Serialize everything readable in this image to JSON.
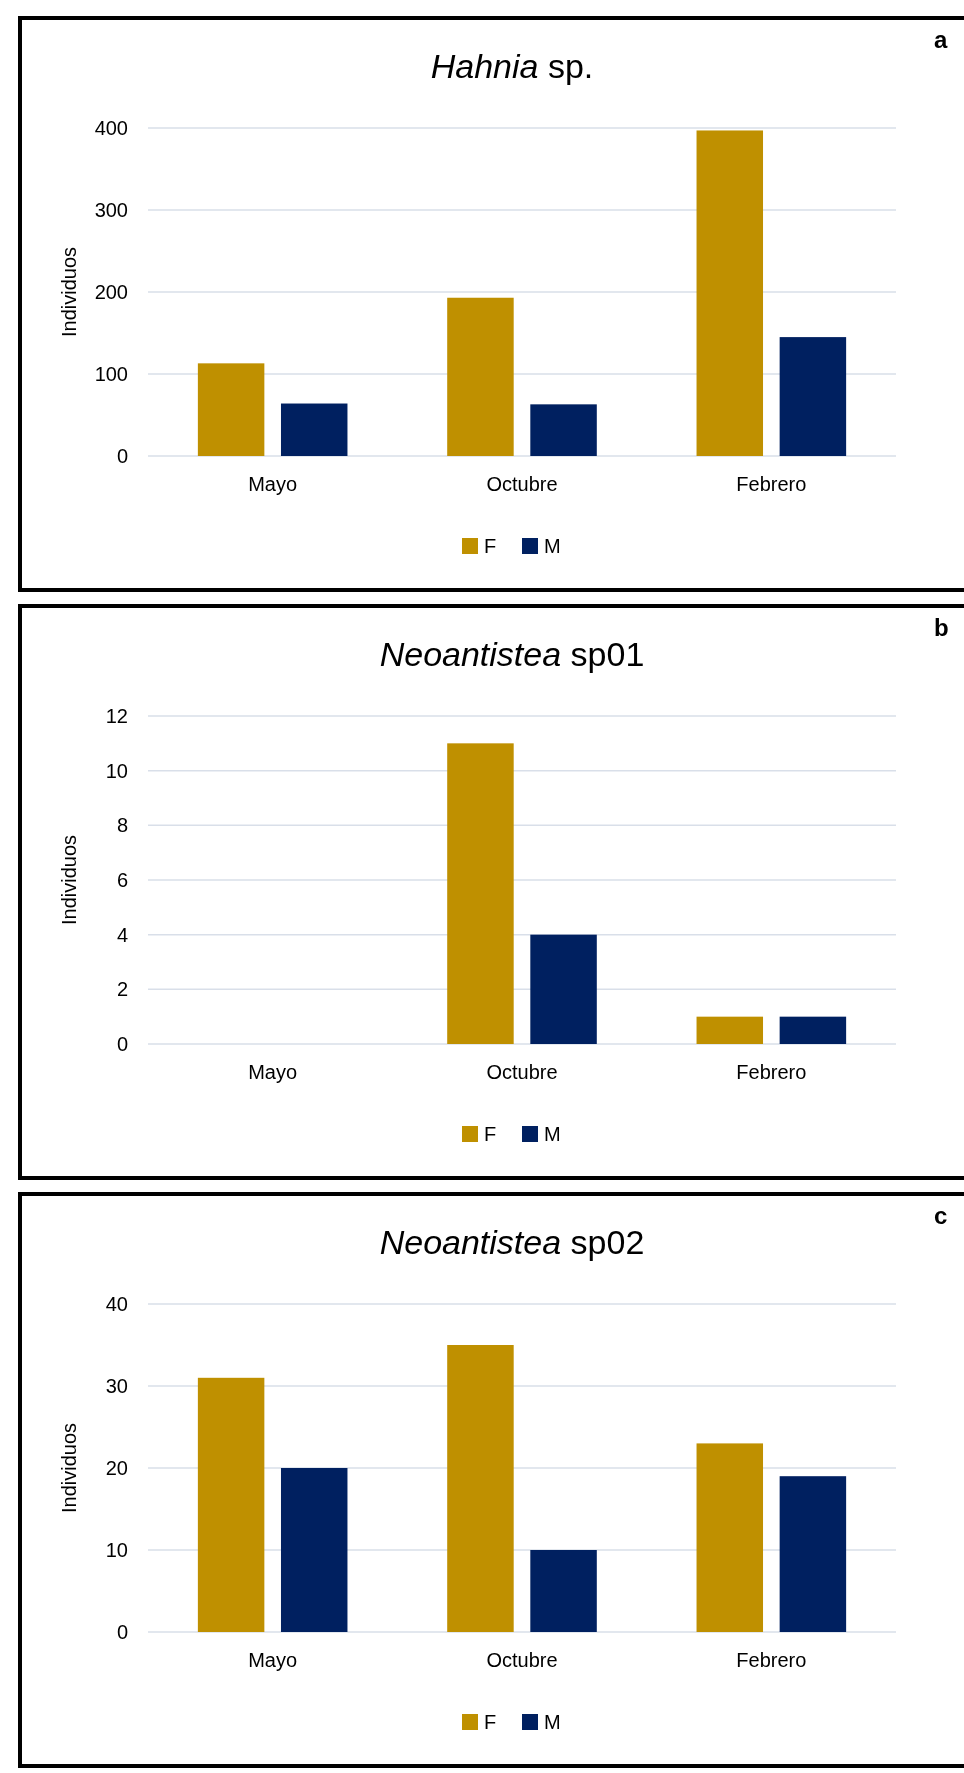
{
  "chart_data": [
    {
      "type": "bar",
      "title": "Hahnia sp.",
      "ylabel": "Individuos",
      "annotations": [
        "a"
      ],
      "categories": [
        "Mayo",
        "Octubre",
        "Febrero"
      ],
      "series": [
        {
          "name": "F",
          "color": "#bf9000",
          "values": [
            113,
            193,
            397
          ]
        },
        {
          "name": "M",
          "color": "#002060",
          "values": [
            64,
            63,
            145
          ]
        }
      ],
      "ylim": [
        0,
        400
      ],
      "yticks": [
        0,
        100,
        200,
        300,
        400
      ],
      "grid": "y",
      "legend": "bottom"
    },
    {
      "type": "bar",
      "title": "Neoantistea sp01",
      "ylabel": "Individuos",
      "annotations": [
        "b"
      ],
      "categories": [
        "Mayo",
        "Octubre",
        "Febrero"
      ],
      "series": [
        {
          "name": "F",
          "color": "#bf9000",
          "values": [
            0,
            11,
            1
          ]
        },
        {
          "name": "M",
          "color": "#002060",
          "values": [
            0,
            4,
            1
          ]
        }
      ],
      "ylim": [
        0,
        12
      ],
      "yticks": [
        0,
        2,
        4,
        6,
        8,
        10,
        12
      ],
      "grid": "y",
      "legend": "bottom"
    },
    {
      "type": "bar",
      "title": "Neoantistea sp02",
      "ylabel": "Individuos",
      "annotations": [
        "c"
      ],
      "categories": [
        "Mayo",
        "Octubre",
        "Febrero"
      ],
      "series": [
        {
          "name": "F",
          "color": "#bf9000",
          "values": [
            31,
            35,
            23
          ]
        },
        {
          "name": "M",
          "color": "#002060",
          "values": [
            20,
            10,
            19
          ]
        }
      ],
      "ylim": [
        0,
        40
      ],
      "yticks": [
        0,
        10,
        20,
        30,
        40
      ],
      "grid": "y",
      "legend": "bottom"
    }
  ]
}
